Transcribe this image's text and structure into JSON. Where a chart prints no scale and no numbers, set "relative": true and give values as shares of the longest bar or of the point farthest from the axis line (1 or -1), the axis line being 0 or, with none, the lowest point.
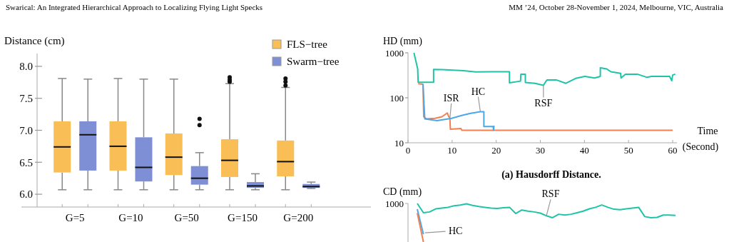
{
  "chart_data": [
    {
      "type": "box",
      "ylabel": "Distance (cm)",
      "categories": [
        "G=5",
        "G=10",
        "G=50",
        "G=150",
        "G=200"
      ],
      "series": [
        {
          "name": "FLS−tree",
          "color": "#f9be55",
          "boxes": [
            {
              "low": 6.07,
              "q1": 6.34,
              "median": 6.74,
              "q3": 7.14,
              "high": 7.81
            },
            {
              "low": 6.07,
              "q1": 6.37,
              "median": 6.75,
              "q3": 7.14,
              "high": 7.81
            },
            {
              "low": 6.07,
              "q1": 6.3,
              "median": 6.58,
              "q3": 6.95,
              "high": 7.8
            },
            {
              "low": 6.07,
              "q1": 6.27,
              "median": 6.53,
              "q3": 6.86,
              "high": 7.73,
              "outliers": [
                7.83,
                7.79,
                7.76
              ]
            },
            {
              "low": 6.07,
              "q1": 6.28,
              "median": 6.51,
              "q3": 6.84,
              "high": 7.67,
              "outliers": [
                7.81,
                7.76,
                7.7
              ]
            }
          ]
        },
        {
          "name": "Swarm−tree",
          "color": "#7f8fd6",
          "boxes": [
            {
              "low": 6.07,
              "q1": 6.37,
              "median": 6.93,
              "q3": 7.14,
              "high": 7.8
            },
            {
              "low": 6.07,
              "q1": 6.2,
              "median": 6.42,
              "q3": 6.89,
              "high": 7.8
            },
            {
              "low": 6.07,
              "q1": 6.15,
              "median": 6.25,
              "q3": 6.44,
              "high": 6.65,
              "outliers": [
                7.18,
                7.08
              ]
            },
            {
              "low": 6.07,
              "q1": 6.1,
              "median": 6.13,
              "q3": 6.19,
              "high": 6.32
            },
            {
              "low": 6.09,
              "q1": 6.1,
              "median": 6.12,
              "q3": 6.16,
              "high": 6.19
            }
          ]
        }
      ],
      "ylim": [
        5.8,
        8.2
      ],
      "yticks": [
        {
          "value": 6,
          "label": "6.0"
        },
        6.5,
        {
          "value": 7,
          "label": "7.0"
        },
        7.5,
        {
          "value": 8,
          "label": "8.0"
        }
      ],
      "legend": "top right",
      "grid": false,
      "annotations": [
        "Swarical: An Integrated Hierarchical Approach to Localizing Flying Light Specks",
        "MM ’24, October 28-November 1, 2024, Melbourne, VIC, Australia"
      ]
    },
    {
      "type": "line",
      "ylabel": "HD (mm)",
      "xlabel": "Time (Second)",
      "log": "y",
      "xlim": [
        0,
        61
      ],
      "xticks": [
        0,
        10,
        20,
        30,
        40,
        50,
        60
      ],
      "ylim": [
        10,
        1000
      ],
      "yticks": [
        10,
        100,
        1000
      ],
      "grid": false,
      "series": [
        {
          "name": "RSF",
          "color": "#1fc4a8",
          "x": [
            1.35,
            2.2,
            2.3,
            5.8,
            5.8,
            7.7,
            12.6,
            15.3,
            19,
            23,
            23,
            25.5,
            25.6,
            26.6,
            26.6,
            28.8,
            30.7,
            31.5,
            33.6,
            35.8,
            38,
            40.1,
            42.3,
            43.6,
            43.6,
            45,
            46,
            48.2,
            48.3,
            49.3,
            52,
            54.2,
            55.2,
            59.3,
            59.8,
            60,
            60.6
          ],
          "values": [
            1000,
            437,
            221,
            221,
            427,
            425,
            400,
            375,
            380,
            380,
            215,
            235,
            335,
            335,
            220,
            210,
            190,
            250,
            250,
            210,
            270,
            300,
            275,
            300,
            464,
            440,
            380,
            350,
            275,
            335,
            335,
            285,
            300,
            300,
            240,
            320,
            335
          ]
        },
        {
          "name": "ISR",
          "color": "#f47f4f",
          "x": [
            2.3,
            3.4,
            3.56,
            4.2,
            6.1,
            7.7,
            8.9,
            9.2,
            9.5,
            9.6,
            12,
            12.2,
            60
          ],
          "values": [
            205,
            200,
            38,
            34,
            35,
            38,
            46,
            39,
            35,
            20,
            20.7,
            18.9,
            18.9
          ]
        },
        {
          "name": "HC",
          "color": "#4aa8ea",
          "x": [
            3.4,
            3.8,
            6.6,
            9.9,
            12,
            14.2,
            16.4,
            17.2,
            17.2,
            19.3,
            19.4,
            19.5
          ],
          "values": [
            200,
            34,
            31,
            35,
            40,
            45,
            49,
            49,
            23,
            23,
            19,
            24
          ]
        }
      ],
      "annotations": [
        "(a) Hausdorff Distance."
      ]
    },
    {
      "type": "line",
      "ylabel": "CD (mm)",
      "relative": true,
      "grid": false,
      "categories": [
        null,
        null,
        null,
        null,
        null,
        null,
        null,
        null,
        null,
        null,
        null,
        null,
        null,
        null,
        null,
        null,
        null,
        null,
        null,
        null,
        null,
        null,
        null,
        null,
        null,
        null,
        null,
        null,
        null,
        null,
        null,
        null,
        null,
        null,
        null,
        null,
        null,
        null,
        null,
        null,
        null,
        null,
        null
      ],
      "series": [
        {
          "name": "RSF",
          "color": "#1fc4a8",
          "values": [
            1,
            0.76,
            0.78,
            0.86,
            0.88,
            0.9,
            0.94,
            0.96,
            0.99,
            0.95,
            0.92,
            0.9,
            0.88,
            0.87,
            0.89,
            0.9,
            0.74,
            0.83,
            0.8,
            0.78,
            0.75,
            0.68,
            0.63,
            0.72,
            0.7,
            0.72,
            0.76,
            0.8,
            0.86,
            0.9,
            0.96,
            0.9,
            0.85,
            0.84,
            0.86,
            0.88,
            0.9,
            0.66,
            0.63,
            0.64,
            0.7,
            0.7,
            0.69
          ]
        },
        {
          "name": "HC",
          "color": "#4aa8ea",
          "values": [
            0.85,
            0.2,
            null,
            null,
            null,
            null,
            null,
            null,
            null,
            null,
            null,
            null,
            null,
            null,
            null,
            null,
            null,
            null,
            null,
            null,
            null,
            null,
            null,
            null,
            null,
            null,
            null,
            null,
            null,
            null,
            null,
            null,
            null,
            null,
            null,
            null,
            null,
            null,
            null,
            null,
            null,
            null,
            null
          ]
        },
        {
          "color": "#f47f4f",
          "values": [
            0.75,
            0,
            null,
            null,
            null,
            null,
            null,
            null,
            null,
            null,
            null,
            null,
            null,
            null,
            null,
            null,
            null,
            null,
            null,
            null,
            null,
            null,
            null,
            null,
            null,
            null,
            null,
            null,
            null,
            null,
            null,
            null,
            null,
            null,
            null,
            null,
            null,
            null,
            null,
            null,
            null,
            null,
            null
          ]
        }
      ],
      "annotations": [
        "1000"
      ]
    }
  ]
}
